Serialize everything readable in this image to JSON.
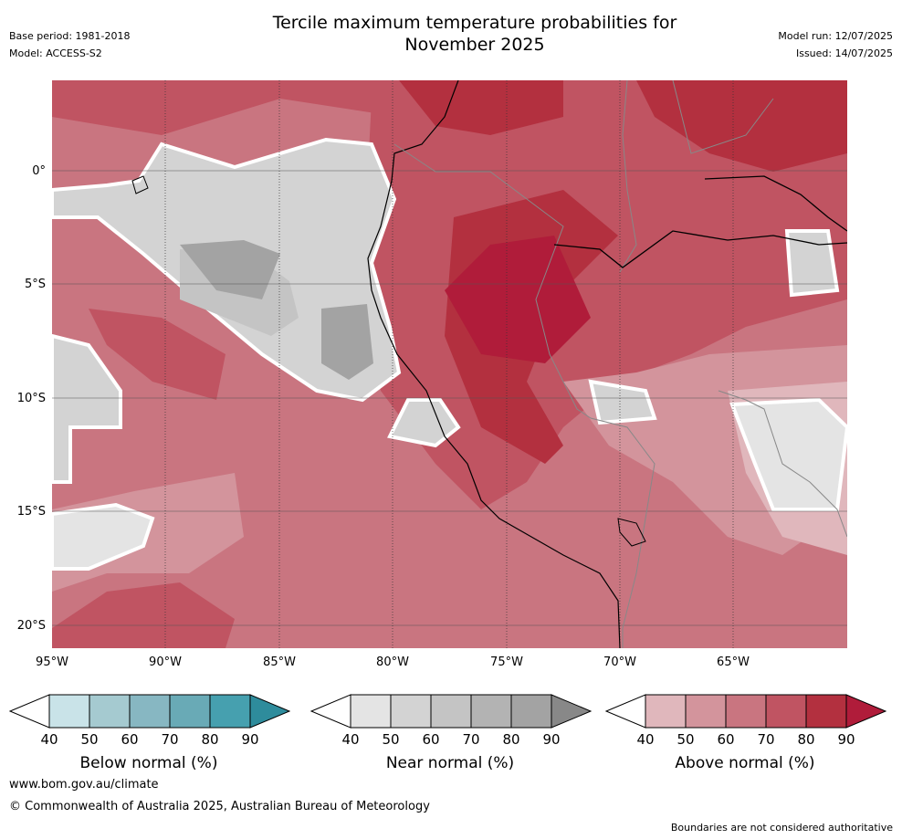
{
  "header": {
    "title_line1": "Tercile maximum temperature probabilities for",
    "title_line2": "November 2025",
    "base_period": "Base period: 1981-2018",
    "model": "Model: ACCESS-S2",
    "model_run": "Model run: 12/07/2025",
    "issued": "Issued: 14/07/2025"
  },
  "map": {
    "lat_labels": [
      "0°",
      "5°S",
      "10°S",
      "15°S",
      "20°S"
    ],
    "lon_labels": [
      "95°W",
      "90°W",
      "85°W",
      "80°W",
      "75°W",
      "70°W",
      "65°W"
    ]
  },
  "legends": [
    {
      "title": "Below normal (%)",
      "ticks": [
        "40",
        "50",
        "60",
        "70",
        "80",
        "90"
      ],
      "colors": [
        "#ffffff",
        "#c9e3e8",
        "#a5cad0",
        "#87b7c2",
        "#69aab6",
        "#46a0af",
        "#2e8c9c"
      ]
    },
    {
      "title": "Near normal (%)",
      "ticks": [
        "40",
        "50",
        "60",
        "70",
        "80",
        "90"
      ],
      "colors": [
        "#ffffff",
        "#e4e4e4",
        "#d3d3d3",
        "#c4c4c4",
        "#b3b3b3",
        "#a3a3a3",
        "#888888"
      ]
    },
    {
      "title": "Above normal (%)",
      "ticks": [
        "40",
        "50",
        "60",
        "70",
        "80",
        "90"
      ],
      "colors": [
        "#ffffff",
        "#e0b7bc",
        "#d3949c",
        "#c97580",
        "#c05462",
        "#b3303f",
        "#b01c3a"
      ]
    }
  ],
  "footer": {
    "url": "www.bom.gov.au/climate",
    "copyright": "© Commonwealth of Australia 2025, Australian Bureau of Meteorology",
    "note": "Boundaries are not considered authoritative"
  }
}
